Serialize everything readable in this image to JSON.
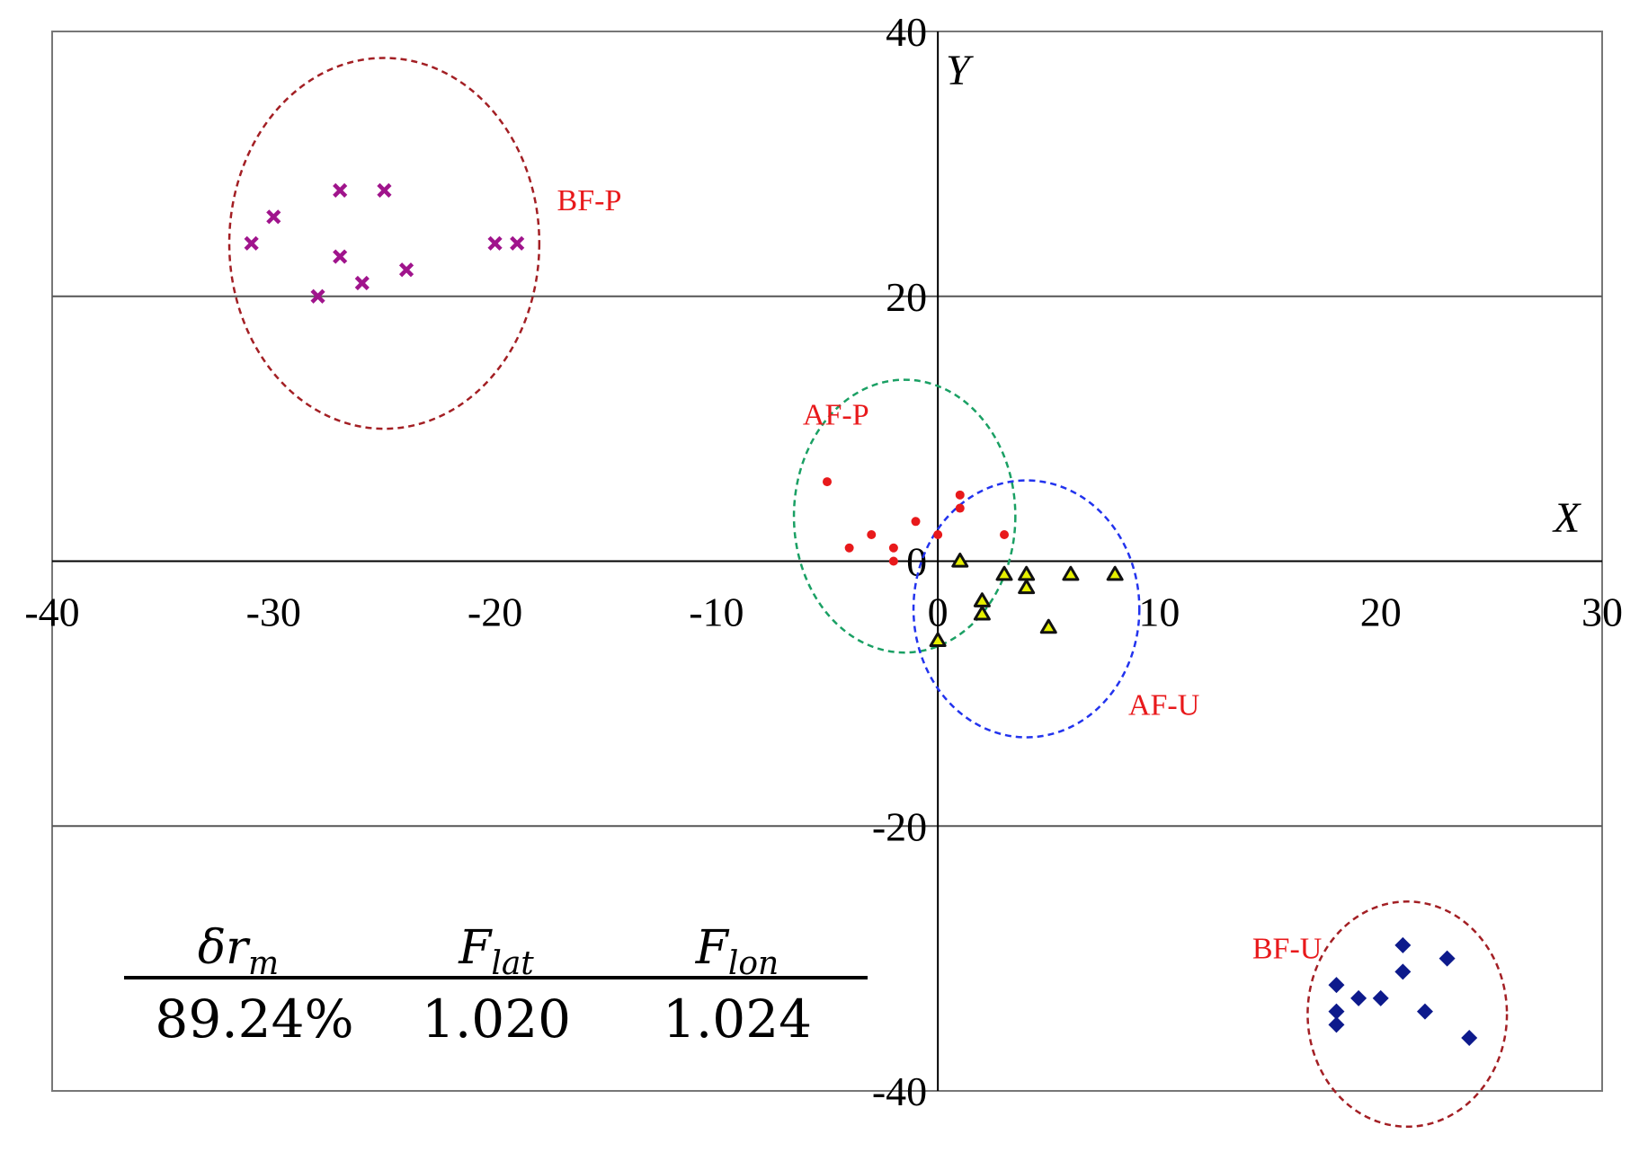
{
  "chart_data": {
    "type": "scatter",
    "title": "",
    "xlabel": "X",
    "ylabel": "Y",
    "xlim": [
      -40,
      30
    ],
    "ylim": [
      -40,
      40
    ],
    "xticks": [
      -40,
      -30,
      -20,
      -10,
      0,
      10,
      20,
      30
    ],
    "yticks": [
      -40,
      -20,
      0,
      20,
      40
    ],
    "x_tick_labels": [
      "-40",
      "-30",
      "-20",
      "-10",
      "0",
      "10",
      "20",
      "30"
    ],
    "y_tick_labels": [
      "-40",
      "-20",
      "0",
      "20",
      "40"
    ],
    "origin_label": "0",
    "grid": "horizontal at y = -20, 0, 20, 40",
    "series": [
      {
        "name": "BF-P",
        "marker": "x",
        "color": "#a0148c",
        "points": [
          [
            -31,
            24
          ],
          [
            -30,
            26
          ],
          [
            -28,
            20
          ],
          [
            -27,
            28
          ],
          [
            -27,
            23
          ],
          [
            -26,
            21
          ],
          [
            -25,
            28
          ],
          [
            -24,
            22
          ],
          [
            -20,
            24
          ],
          [
            -19,
            24
          ]
        ]
      },
      {
        "name": "AF-P",
        "marker": "circle",
        "color": "#e8191b",
        "points": [
          [
            -5,
            6
          ],
          [
            -4,
            1
          ],
          [
            -3,
            2
          ],
          [
            -2,
            1
          ],
          [
            -2,
            0
          ],
          [
            -1,
            3
          ],
          [
            0,
            2
          ],
          [
            1,
            5
          ],
          [
            1,
            4
          ],
          [
            3,
            2
          ]
        ]
      },
      {
        "name": "AF-U",
        "marker": "triangle",
        "color": "#111111",
        "fill": "#e6f000",
        "points": [
          [
            0,
            -6
          ],
          [
            1,
            0
          ],
          [
            2,
            -3
          ],
          [
            2,
            -4
          ],
          [
            3,
            -1
          ],
          [
            4,
            -1
          ],
          [
            4,
            -2
          ],
          [
            5,
            -5
          ],
          [
            6,
            -1
          ],
          [
            8,
            -1
          ]
        ]
      },
      {
        "name": "BF-U",
        "marker": "diamond",
        "color": "#0d1a8c",
        "points": [
          [
            18,
            -32
          ],
          [
            18,
            -34
          ],
          [
            18,
            -35
          ],
          [
            19,
            -33
          ],
          [
            20,
            -33
          ],
          [
            21,
            -29
          ],
          [
            21,
            -31
          ],
          [
            22,
            -34
          ],
          [
            23,
            -30
          ],
          [
            24,
            -36
          ]
        ]
      }
    ],
    "clusters": [
      {
        "label": "BF-P",
        "center": [
          -25,
          24
        ],
        "radii": [
          7,
          14
        ],
        "color": "#a31f24",
        "label_at": [
          -17.2,
          26.5
        ]
      },
      {
        "label": "AF-P",
        "center": [
          -1.5,
          3.4
        ],
        "radii": [
          5,
          10.3
        ],
        "color": "#1aa064",
        "label_at": [
          -6.1,
          10.3
        ]
      },
      {
        "label": "AF-U",
        "center": [
          4,
          -3.6
        ],
        "radii": [
          5.1,
          9.7
        ],
        "color": "#2233ee",
        "label_at": [
          8.6,
          -11.6
        ]
      },
      {
        "label": "BF-U",
        "center": [
          21.2,
          -34.2
        ],
        "radii": [
          4.5,
          8.5
        ],
        "color": "#a31f24",
        "label_at": [
          14.2,
          -30
        ]
      }
    ],
    "annotation_table": {
      "headers": [
        {
          "symbol": "δr",
          "subscript": "m"
        },
        {
          "symbol": "F",
          "subscript": "lat"
        },
        {
          "symbol": "F",
          "subscript": "lon"
        }
      ],
      "values": [
        "89.24%",
        "1.020",
        "1.024"
      ]
    }
  },
  "colors": {
    "axis": "#000000",
    "grid": "#555555",
    "frame": "#777777",
    "cluster_label": "#e8191b"
  }
}
